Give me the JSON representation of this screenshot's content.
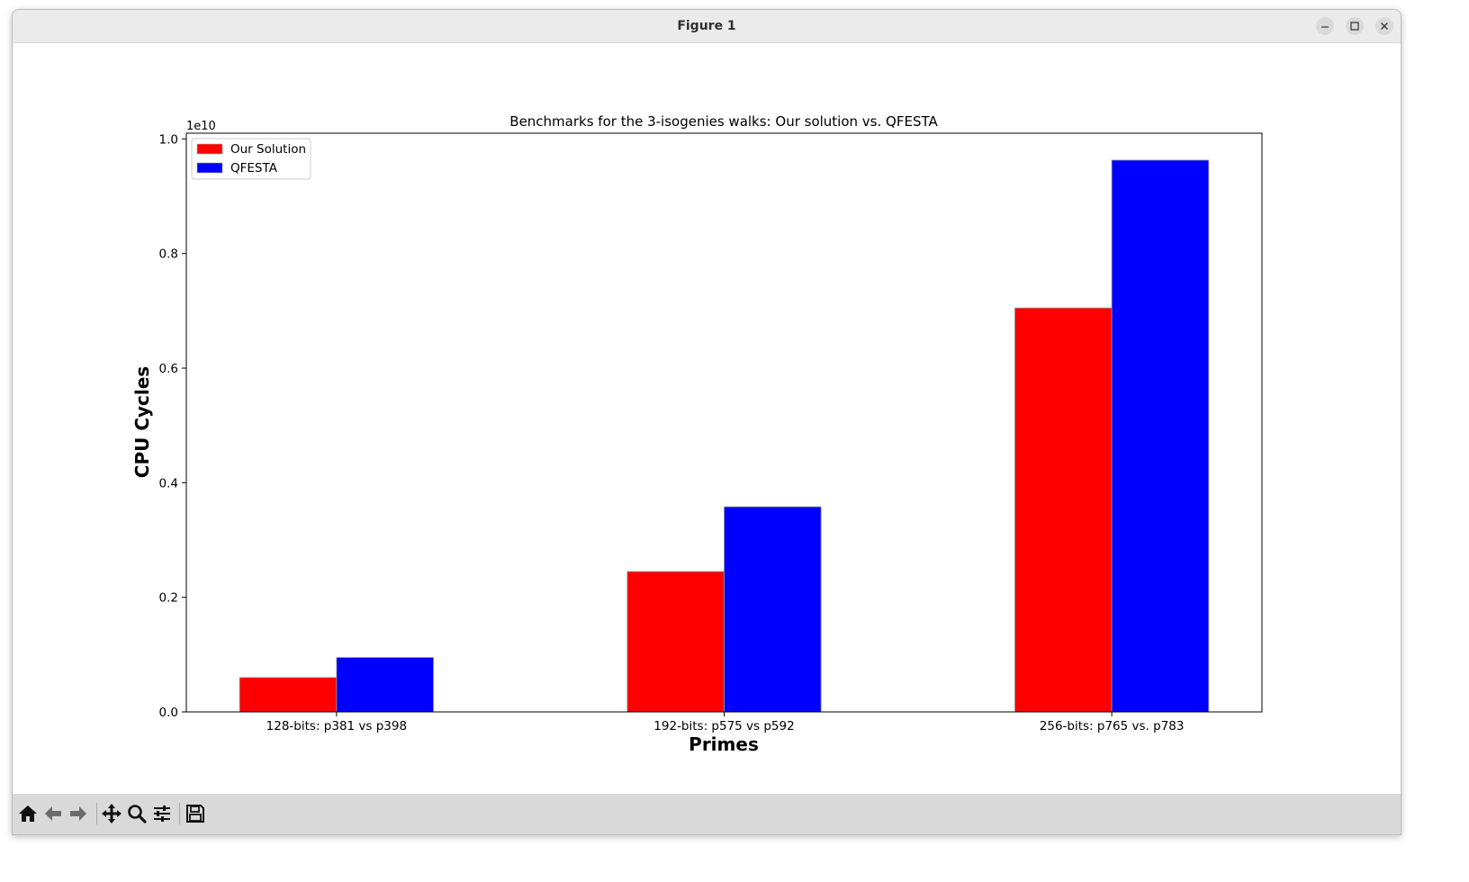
{
  "window": {
    "title": "Figure 1"
  },
  "toolbar": {
    "items": [
      {
        "name": "home-icon"
      },
      {
        "name": "back-arrow-icon"
      },
      {
        "name": "forward-arrow-icon"
      },
      {
        "name": "pan-icon"
      },
      {
        "name": "zoom-icon"
      },
      {
        "name": "configure-subplots-icon"
      },
      {
        "name": "save-icon"
      }
    ]
  },
  "chart_data": {
    "type": "bar",
    "title": "Benchmarks for the 3-isogenies walks: Our solution vs. QFESTA",
    "xlabel": "Primes",
    "ylabel": "CPU Cycles",
    "offset_label": "1e10",
    "categories": [
      "128-bits: p381 vs p398",
      "192-bits: p575 vs p592",
      "256-bits: p765 vs. p783"
    ],
    "series": [
      {
        "name": "Our Solution",
        "color": "#ff0000",
        "values": [
          600000000.0,
          2450000000.0,
          7050000000.0
        ]
      },
      {
        "name": "QFESTA",
        "color": "#0000ff",
        "values": [
          950000000.0,
          3580000000.0,
          9630000000.0
        ]
      }
    ],
    "ylim": [
      0,
      10100000000.0
    ],
    "yticks": [
      "0.0",
      "0.2",
      "0.4",
      "0.6",
      "0.8",
      "1.0"
    ],
    "ytick_values": [
      0,
      2000000000.0,
      4000000000.0,
      6000000000.0,
      8000000000.0,
      10000000000.0
    ],
    "legend_position": "upper-left",
    "grid": false
  }
}
